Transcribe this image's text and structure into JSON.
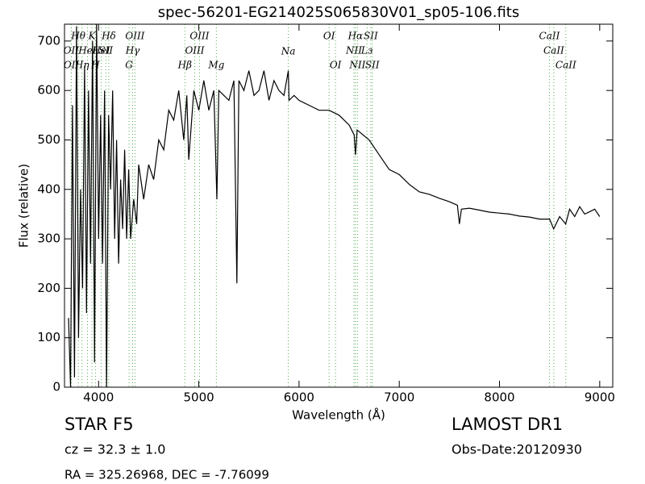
{
  "chart_data": {
    "type": "line",
    "title": "spec-56201-EG214025S065830V01_sp05-106.fits",
    "x_label": "Wavelength (Å)",
    "y_label": "Flux (relative)",
    "annotations": [
      "STAR   F5",
      "cz = 32.3 ± 1.0",
      "RA = 325.26968, DEC = -7.76099",
      "LAMOST DR1",
      "Obs-Date:20120930"
    ],
    "xlim": [
      3660,
      9130
    ],
    "ylim": [
      0,
      734
    ],
    "xticks": [
      4000,
      5000,
      6000,
      7000,
      8000,
      9000
    ],
    "yticks": [
      0,
      100,
      200,
      300,
      400,
      500,
      600,
      700
    ],
    "x": [
      3700,
      3720,
      3740,
      3760,
      3780,
      3800,
      3820,
      3840,
      3860,
      3880,
      3900,
      3920,
      3940,
      3960,
      3980,
      4000,
      4020,
      4040,
      4060,
      4080,
      4100,
      4120,
      4140,
      4160,
      4180,
      4200,
      4220,
      4240,
      4260,
      4280,
      4300,
      4320,
      4350,
      4380,
      4400,
      4450,
      4500,
      4550,
      4600,
      4650,
      4700,
      4750,
      4800,
      4850,
      4880,
      4900,
      4950,
      5000,
      5050,
      5100,
      5150,
      5180,
      5200,
      5250,
      5300,
      5350,
      5380,
      5400,
      5450,
      5500,
      5550,
      5600,
      5650,
      5700,
      5750,
      5800,
      5850,
      5893,
      5900,
      5950,
      6000,
      6100,
      6200,
      6300,
      6400,
      6500,
      6550,
      6563,
      6580,
      6700,
      6800,
      6900,
      7000,
      7100,
      7200,
      7300,
      7400,
      7500,
      7580,
      7600,
      7620,
      7700,
      7800,
      7900,
      8000,
      8100,
      8200,
      8300,
      8400,
      8500,
      8540,
      8600,
      8660,
      8700,
      8750,
      8800,
      8850,
      8900,
      8950,
      9000
    ],
    "series": [
      {
        "name": "flux",
        "color": "#000000",
        "values": [
          140,
          0,
          570,
          20,
          730,
          100,
          400,
          200,
          650,
          150,
          600,
          250,
          700,
          50,
          734,
          300,
          550,
          250,
          600,
          0,
          550,
          400,
          600,
          300,
          500,
          250,
          420,
          320,
          480,
          300,
          440,
          300,
          380,
          330,
          450,
          380,
          450,
          420,
          500,
          480,
          560,
          540,
          600,
          500,
          590,
          460,
          600,
          560,
          620,
          560,
          600,
          380,
          600,
          590,
          580,
          620,
          210,
          620,
          600,
          640,
          590,
          600,
          640,
          580,
          620,
          600,
          590,
          640,
          580,
          590,
          580,
          570,
          560,
          560,
          550,
          530,
          510,
          470,
          520,
          500,
          470,
          440,
          430,
          410,
          395,
          390,
          382,
          375,
          368,
          330,
          360,
          362,
          358,
          354,
          352,
          350,
          346,
          344,
          340,
          340,
          320,
          345,
          330,
          360,
          345,
          365,
          350,
          355,
          360,
          345
        ]
      }
    ],
    "spectral_lines": {
      "color": "#55aa55",
      "wavelengths": [
        3798,
        3934,
        4102,
        4363,
        5007,
        6300,
        6563,
        6716,
        8498,
        3727,
        3889,
        4026,
        4072,
        4340,
        4959,
        6548,
        6678,
        8542,
        3729,
        3835,
        3970,
        4304,
        4861,
        5175,
        5893,
        6364,
        6583,
        6731,
        8662
      ],
      "labels": [
        "Hθ",
        "K",
        "Hδ",
        "OIII",
        "OIII",
        "OI",
        "Hα",
        "SII",
        "CaII",
        "OII",
        "HeI",
        "HeI",
        "SII",
        "Hγ",
        "OIII",
        "NII",
        "Lз",
        "CaII",
        "OII",
        "Hη",
        "H",
        "G",
        "Hβ",
        "Mg",
        "Na",
        "OI",
        "NII",
        "SII",
        "CaII"
      ]
    }
  }
}
